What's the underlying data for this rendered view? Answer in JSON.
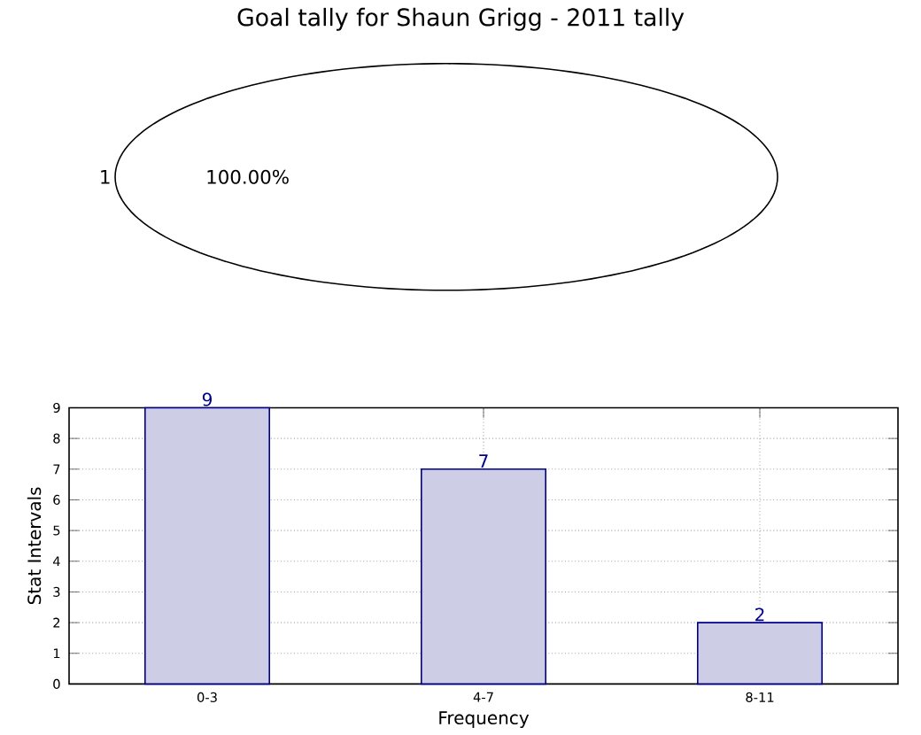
{
  "chart_data": [
    {
      "type": "pie",
      "title": "Goal tally for Shaun Grigg - 2011 tally",
      "categories": [
        "1"
      ],
      "values": [
        100
      ],
      "colors": [
        "#ffffff"
      ],
      "value_labels": [
        "100.00%"
      ]
    },
    {
      "type": "bar",
      "categories": [
        "0-3",
        "4-7",
        "8-11"
      ],
      "values": [
        9,
        7,
        2
      ],
      "color": "#cdcde6",
      "xlabel": "Frequency",
      "ylabel": "Stat Intervals",
      "ylim": [
        0,
        9
      ],
      "yticks": [
        0,
        1,
        2,
        3,
        4,
        5,
        6,
        7,
        8,
        9
      ],
      "grid": true,
      "data_labels": true
    }
  ]
}
